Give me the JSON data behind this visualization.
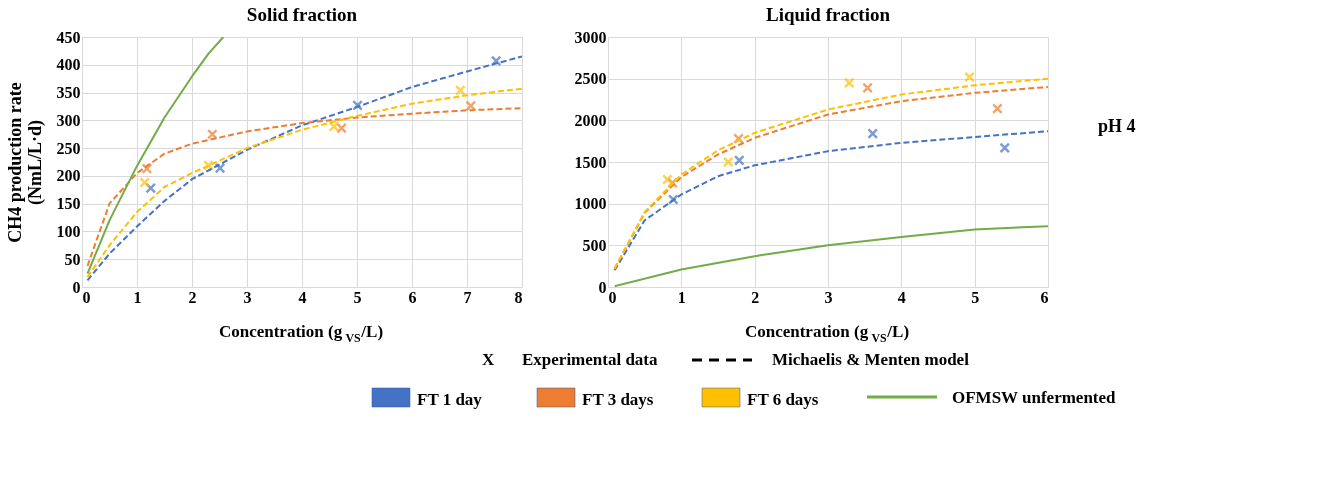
{
  "chart_data": [
    {
      "type": "scatter",
      "title": "Solid fraction",
      "xlabel": "Concentration (g$_{VS}$/L)",
      "ylabel": "CH4 production rate (NmL/L·d)",
      "xlim": [
        0,
        8
      ],
      "xticks": [
        0,
        1,
        2,
        3,
        4,
        5,
        6,
        7,
        8
      ],
      "ylim": [
        0,
        450
      ],
      "yticks": [
        0,
        50,
        100,
        150,
        200,
        250,
        300,
        350,
        400,
        450
      ],
      "grid": true,
      "legend": "bottom",
      "annotations": [
        "X",
        "Experimental data",
        "Michaelis & Menten model"
      ],
      "series": [
        {
          "name": "FT 1 day",
          "marker": "cross",
          "color": "#4472c4",
          "x": [
            1.25,
            2.51,
            5.01,
            7.53
          ],
          "values": [
            178,
            214,
            327,
            407
          ]
        },
        {
          "name": "FT 3 days",
          "marker": "cross",
          "color": "#ed7d31",
          "x": [
            1.18,
            2.37,
            4.72,
            7.07
          ],
          "values": [
            213,
            275,
            286,
            326
          ]
        },
        {
          "name": "FT 6 days",
          "marker": "cross",
          "color": "#ffc000",
          "x": [
            1.14,
            2.3,
            4.58,
            6.88
          ],
          "values": [
            188,
            219,
            289,
            354
          ]
        },
        {
          "type": "line",
          "marker": "none",
          "line_style": "dashed",
          "color": "#4472c4",
          "x": [
            0.1,
            0.5,
            1,
            1.5,
            2,
            3,
            4,
            5,
            6,
            7,
            8
          ],
          "values": [
            12,
            60,
            109,
            155,
            194,
            247,
            291,
            324,
            360,
            388,
            415
          ]
        },
        {
          "type": "line",
          "marker": "none",
          "line_style": "dashed",
          "color": "#ed7d31",
          "x": [
            0.1,
            0.5,
            1,
            1.5,
            2,
            3,
            4,
            5,
            6,
            7,
            8
          ],
          "values": [
            38,
            150,
            205,
            240,
            258,
            280,
            295,
            305,
            312,
            318,
            322
          ]
        },
        {
          "type": "line",
          "marker": "none",
          "line_style": "dashed",
          "color": "#ffc000",
          "x": [
            0.1,
            0.5,
            1,
            1.5,
            2,
            3,
            4,
            5,
            6,
            7,
            8
          ],
          "values": [
            18,
            75,
            135,
            180,
            205,
            250,
            283,
            308,
            330,
            345,
            357
          ]
        },
        {
          "name": "OFMSW unfermented",
          "type": "line",
          "marker": "none",
          "line_style": "solid",
          "color": "#70ad47",
          "x": [
            0.1,
            0.5,
            1,
            1.5,
            2,
            2.3,
            2.57
          ],
          "values": [
            24,
            120,
            218,
            305,
            379,
            420,
            450
          ]
        }
      ]
    },
    {
      "type": "scatter",
      "title": "Liquid fraction",
      "xlabel": "Concentration (g$_{VS}$/L)",
      "xlim": [
        0,
        6
      ],
      "xticks": [
        0,
        1,
        2,
        3,
        4,
        5,
        6
      ],
      "ylim": [
        0,
        3000
      ],
      "yticks": [
        0,
        500,
        1000,
        1500,
        2000,
        2500,
        3000
      ],
      "grid": true,
      "annotations": [
        "pH 4"
      ],
      "series": [
        {
          "marker": "cross",
          "color": "#4472c4",
          "x": [
            0.89,
            1.79,
            3.61,
            5.41
          ],
          "values": [
            1050,
            1520,
            1840,
            1670
          ]
        },
        {
          "marker": "cross",
          "color": "#ed7d31",
          "x": [
            0.88,
            1.78,
            3.54,
            5.31
          ],
          "values": [
            1250,
            1780,
            2390,
            2140
          ]
        },
        {
          "marker": "cross",
          "color": "#ffc000",
          "x": [
            0.81,
            1.64,
            3.29,
            4.93
          ],
          "values": [
            1290,
            1500,
            2450,
            2520
          ]
        },
        {
          "type": "line",
          "marker": "none",
          "line_style": "dashed",
          "color": "#4472c4",
          "x": [
            0.09,
            0.5,
            1,
            1.5,
            2,
            3,
            4,
            5,
            6
          ],
          "values": [
            200,
            800,
            1110,
            1330,
            1460,
            1630,
            1730,
            1800,
            1870
          ]
        },
        {
          "type": "line",
          "marker": "none",
          "line_style": "dashed",
          "color": "#ed7d31",
          "x": [
            0.09,
            0.5,
            1,
            1.5,
            2,
            3,
            4,
            5,
            6
          ],
          "values": [
            220,
            890,
            1320,
            1590,
            1790,
            2070,
            2230,
            2330,
            2400
          ]
        },
        {
          "type": "line",
          "marker": "none",
          "line_style": "dashed",
          "color": "#ffc000",
          "x": [
            0.09,
            0.5,
            1,
            1.5,
            2,
            3,
            4,
            5,
            6
          ],
          "values": [
            220,
            900,
            1350,
            1640,
            1850,
            2130,
            2310,
            2420,
            2500
          ]
        },
        {
          "type": "line",
          "marker": "none",
          "line_style": "solid",
          "color": "#70ad47",
          "x": [
            0.09,
            1,
            2,
            3,
            4,
            5,
            6
          ],
          "values": [
            10,
            210,
            370,
            500,
            600,
            690,
            730
          ]
        }
      ]
    }
  ]
}
